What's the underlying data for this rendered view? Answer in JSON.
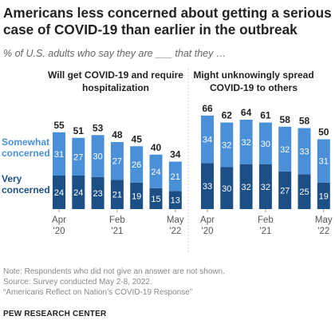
{
  "title": "Americans less concerned about getting a serious case of COVID-19 than earlier in the outbreak",
  "subtitle": "% of U.S. adults who say they are ___ that they …",
  "legend": {
    "somewhat": "Somewhat concerned",
    "very": "Very concerned"
  },
  "colors": {
    "somewhat": "#4a90d9",
    "very": "#1c4f86",
    "title": "#222222",
    "muted": "#888888"
  },
  "chart_data": [
    {
      "type": "bar",
      "stacked": true,
      "title": "Will get COVID-19 and require hospitalization",
      "categories": [
        "Apr '20",
        "",
        "",
        "Feb '21",
        "",
        "",
        "May '22"
      ],
      "tick_labels": [
        {
          "index": 0,
          "month": "Apr",
          "year": "'20"
        },
        {
          "index": 3,
          "month": "Feb",
          "year": "'21"
        },
        {
          "index": 6,
          "month": "May",
          "year": "'22"
        }
      ],
      "series": [
        {
          "name": "Very concerned",
          "values": [
            24,
            24,
            23,
            21,
            19,
            15,
            13
          ]
        },
        {
          "name": "Somewhat concerned",
          "values": [
            31,
            27,
            30,
            27,
            26,
            24,
            21
          ]
        }
      ],
      "totals": [
        55,
        51,
        53,
        48,
        45,
        40,
        34
      ],
      "ylim": [
        0,
        70
      ]
    },
    {
      "type": "bar",
      "stacked": true,
      "title": "Might unknowingly spread COVID-19 to others",
      "categories": [
        "Apr '20",
        "",
        "",
        "Feb '21",
        "",
        "",
        "May '22"
      ],
      "tick_labels": [
        {
          "index": 0,
          "month": "Apr",
          "year": "'20"
        },
        {
          "index": 3,
          "month": "Feb",
          "year": "'21"
        },
        {
          "index": 6,
          "month": "May",
          "year": "'22"
        }
      ],
      "series": [
        {
          "name": "Very concerned",
          "values": [
            33,
            30,
            32,
            32,
            27,
            25,
            19
          ]
        },
        {
          "name": "Somewhat concerned",
          "values": [
            34,
            32,
            32,
            30,
            32,
            33,
            31
          ]
        }
      ],
      "totals": [
        66,
        62,
        64,
        61,
        58,
        58,
        50
      ],
      "ylim": [
        0,
        70
      ]
    }
  ],
  "notes": {
    "note": "Note: Respondents who did not give an answer are not shown.",
    "source": "Source: Survey conducted May 2-8, 2022.",
    "report": "“Americans Reflect on Nation’s COVID-19 Response”"
  },
  "brand": "PEW RESEARCH CENTER"
}
